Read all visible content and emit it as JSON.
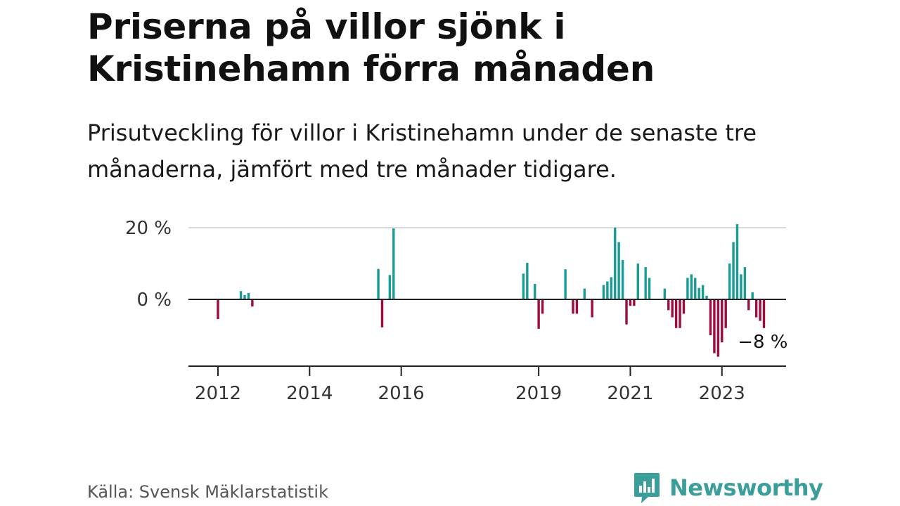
{
  "title": "Priserna på villor sjönk i Kristinehamn förra månaden",
  "subtitle": "Prisutveckling för villor i Kristinehamn under de senaste tre månaderna, jämfört med tre månader tidigare.",
  "source": "Källa: Svensk Mäklarstatistik",
  "brand": {
    "name": "Newsworthy",
    "color": "#3b9e9a",
    "icon": "bar-chart-speech-bubble-icon"
  },
  "colors": {
    "positive": "#1a9c96",
    "negative": "#9e0b3f",
    "axis": "#222222",
    "grid": "#d9d9d9"
  },
  "chart_data": {
    "type": "bar",
    "unit": "%",
    "x_ticks": [
      {
        "label": "2012",
        "year": 2012
      },
      {
        "label": "2014",
        "year": 2014
      },
      {
        "label": "2016",
        "year": 2016
      },
      {
        "label": "2019",
        "year": 2019
      },
      {
        "label": "2021",
        "year": 2021
      },
      {
        "label": "2023",
        "year": 2023
      }
    ],
    "y_ticks": [
      {
        "label": "20 %",
        "value": 20
      },
      {
        "label": "0 %",
        "value": 0
      }
    ],
    "ylim": [
      -19,
      20
    ],
    "grid": true,
    "end_label": "−8 %",
    "bars": [
      {
        "date": "2012-01",
        "value": -5.5
      },
      {
        "date": "2012-07",
        "value": 2.3
      },
      {
        "date": "2012-08",
        "value": 1.2
      },
      {
        "date": "2012-09",
        "value": 1.8
      },
      {
        "date": "2012-10",
        "value": -2.0
      },
      {
        "date": "2015-07",
        "value": 8.5
      },
      {
        "date": "2015-08",
        "value": -7.8
      },
      {
        "date": "2015-10",
        "value": 6.8
      },
      {
        "date": "2015-11",
        "value": 19.8
      },
      {
        "date": "2018-09",
        "value": 7.2
      },
      {
        "date": "2018-10",
        "value": 10.2
      },
      {
        "date": "2018-12",
        "value": 4.3
      },
      {
        "date": "2019-01",
        "value": -8.2
      },
      {
        "date": "2019-02",
        "value": -4.0
      },
      {
        "date": "2019-08",
        "value": 8.4
      },
      {
        "date": "2019-10",
        "value": -4.0
      },
      {
        "date": "2019-11",
        "value": -4.0
      },
      {
        "date": "2020-01",
        "value": 3.0
      },
      {
        "date": "2020-03",
        "value": -5.0
      },
      {
        "date": "2020-06",
        "value": 4.0
      },
      {
        "date": "2020-07",
        "value": 5.0
      },
      {
        "date": "2020-08",
        "value": 6.2
      },
      {
        "date": "2020-09",
        "value": 20.0
      },
      {
        "date": "2020-10",
        "value": 16.0
      },
      {
        "date": "2020-11",
        "value": 11.0
      },
      {
        "date": "2020-12",
        "value": -7.0
      },
      {
        "date": "2021-01",
        "value": -1.8
      },
      {
        "date": "2021-02",
        "value": -1.8
      },
      {
        "date": "2021-03",
        "value": 10.0
      },
      {
        "date": "2021-05",
        "value": 9.0
      },
      {
        "date": "2021-06",
        "value": 6.0
      },
      {
        "date": "2021-10",
        "value": 3.0
      },
      {
        "date": "2021-11",
        "value": -3.0
      },
      {
        "date": "2021-12",
        "value": -5.0
      },
      {
        "date": "2022-01",
        "value": -8.0
      },
      {
        "date": "2022-02",
        "value": -8.0
      },
      {
        "date": "2022-03",
        "value": -4.0
      },
      {
        "date": "2022-04",
        "value": 6.0
      },
      {
        "date": "2022-05",
        "value": 7.0
      },
      {
        "date": "2022-06",
        "value": 6.0
      },
      {
        "date": "2022-07",
        "value": 3.2
      },
      {
        "date": "2022-08",
        "value": 4.0
      },
      {
        "date": "2022-09",
        "value": 1.0
      },
      {
        "date": "2022-10",
        "value": -10.0
      },
      {
        "date": "2022-11",
        "value": -15.0
      },
      {
        "date": "2022-12",
        "value": -16.0
      },
      {
        "date": "2023-01",
        "value": -12.0
      },
      {
        "date": "2023-02",
        "value": -8.0
      },
      {
        "date": "2023-03",
        "value": 10.0
      },
      {
        "date": "2023-04",
        "value": 16.0
      },
      {
        "date": "2023-05",
        "value": 21.0
      },
      {
        "date": "2023-06",
        "value": 7.0
      },
      {
        "date": "2023-07",
        "value": 9.0
      },
      {
        "date": "2023-08",
        "value": -3.0
      },
      {
        "date": "2023-09",
        "value": 2.0
      },
      {
        "date": "2023-10",
        "value": -5.0
      },
      {
        "date": "2023-11",
        "value": -6.0
      },
      {
        "date": "2023-12",
        "value": -8.0
      }
    ]
  }
}
